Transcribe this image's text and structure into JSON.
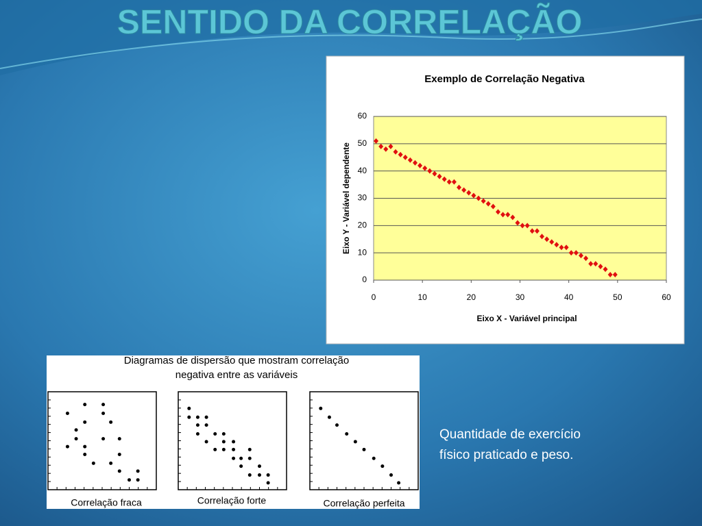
{
  "slide_title": "SENTIDO DA CORRELAÇÃO",
  "caption": [
    "Quantidade de exercício",
    "físico praticado e peso."
  ],
  "diagram_panel": {
    "title": [
      "Diagramas de dispersão que mostram correlação",
      "negativa entre as variáveis"
    ]
  },
  "chart_data": [
    {
      "type": "scatter",
      "title": "Exemplo de Correlação Negativa",
      "x_label": "Eixo X - Variável principal",
      "y_label": "Eixo Y - Variável dependente",
      "x": [
        0.5,
        1.5,
        2.5,
        3.5,
        4.5,
        5.5,
        6.5,
        7.5,
        8.5,
        9.5,
        10.5,
        11.5,
        12.5,
        13.5,
        14.5,
        15.5,
        16.5,
        17.5,
        18.5,
        19.5,
        20.5,
        21.5,
        22.5,
        23.5,
        24.5,
        25.5,
        26.5,
        27.5,
        28.5,
        29.5,
        30.5,
        31.5,
        32.5,
        33.5,
        34.5,
        35.5,
        36.5,
        37.5,
        38.5,
        39.5,
        40.5,
        41.5,
        42.5,
        43.5,
        44.5,
        45.5,
        46.5,
        47.5,
        48.5,
        49.5
      ],
      "values": [
        51,
        49,
        48,
        49,
        47,
        46,
        45,
        44,
        43,
        42,
        41,
        40,
        39,
        38,
        37,
        36,
        36,
        34,
        33,
        32,
        31,
        30,
        29,
        28,
        27,
        25,
        24,
        24,
        23,
        21,
        20,
        20,
        18,
        18,
        16,
        15,
        14,
        13,
        12,
        12,
        10,
        10,
        9,
        8,
        6,
        6,
        5,
        4,
        2,
        2
      ],
      "color": "#e01010",
      "marker": "diamond",
      "plot_background": "#ffff99",
      "grid": true,
      "xlim": [
        0,
        60
      ],
      "xticks": [
        0,
        10,
        20,
        30,
        40,
        50,
        60
      ],
      "ylim": [
        0,
        60
      ],
      "yticks": [
        0,
        10,
        20,
        30,
        40,
        50,
        60
      ]
    },
    {
      "type": "scatter",
      "title": "Correlação fraca",
      "color": "#000000",
      "marker": "dot",
      "x": [
        1.8,
        3.4,
        5.1,
        5.1,
        2.6,
        3.4,
        5.8,
        2.6,
        5.1,
        6.6,
        1.8,
        3.4,
        3.4,
        6.6,
        4.2,
        5.8,
        6.6,
        7.5,
        8.3,
        8.3
      ],
      "values": [
        7.8,
        8.7,
        8.7,
        7.8,
        6.1,
        6.9,
        6.9,
        5.2,
        5.2,
        5.2,
        4.4,
        4.4,
        3.6,
        3.6,
        2.7,
        2.7,
        1.9,
        1.0,
        1.0,
        1.9
      ],
      "xlim": [
        0,
        10
      ],
      "ylim": [
        0,
        10
      ]
    },
    {
      "type": "scatter",
      "title": "Correlação forte",
      "color": "#000000",
      "marker": "dot",
      "x": [
        1.0,
        1.0,
        1.8,
        2.6,
        1.8,
        2.6,
        1.8,
        3.4,
        4.2,
        2.6,
        4.2,
        5.1,
        3.4,
        4.2,
        5.1,
        6.6,
        5.1,
        5.8,
        6.6,
        5.8,
        7.5,
        6.6,
        7.5,
        8.3,
        8.3
      ],
      "values": [
        8.3,
        7.4,
        7.4,
        7.4,
        6.6,
        6.6,
        5.7,
        5.7,
        5.7,
        4.9,
        4.9,
        4.9,
        4.1,
        4.1,
        4.1,
        4.1,
        3.2,
        3.2,
        3.2,
        2.4,
        2.4,
        1.5,
        1.5,
        1.5,
        0.7
      ],
      "xlim": [
        0,
        10
      ],
      "ylim": [
        0,
        10
      ]
    },
    {
      "type": "scatter",
      "title": "Correlação perfeita",
      "color": "#000000",
      "marker": "dot",
      "x": [
        1.0,
        1.8,
        2.5,
        3.4,
        4.2,
        5.0,
        5.9,
        6.7,
        7.5,
        8.2
      ],
      "values": [
        8.3,
        7.4,
        6.6,
        5.7,
        4.9,
        4.1,
        3.2,
        2.4,
        1.5,
        0.7
      ],
      "xlim": [
        0,
        10
      ],
      "ylim": [
        0,
        10
      ]
    }
  ]
}
